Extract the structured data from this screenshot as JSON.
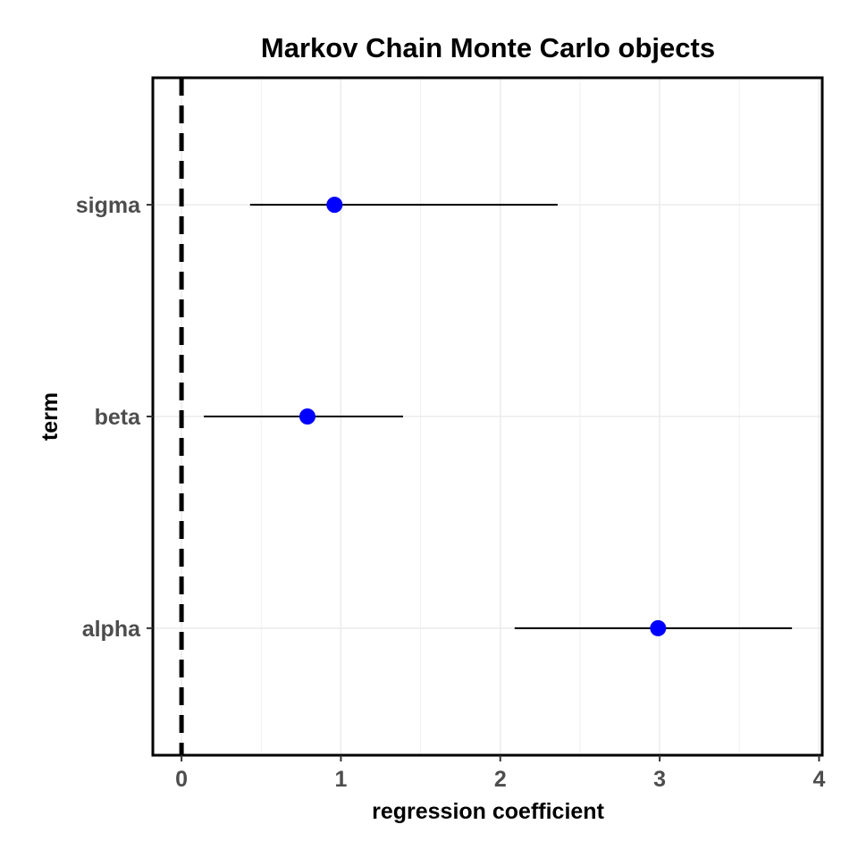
{
  "chart_data": {
    "type": "scatter",
    "title": "Markov Chain Monte Carlo objects",
    "xlabel": "regression coefficient",
    "ylabel": "term",
    "xlim": [
      -0.18,
      4.02
    ],
    "x_ticks": [
      0,
      1,
      2,
      3,
      4
    ],
    "x_tick_labels": [
      "0",
      "1",
      "2",
      "3",
      "4"
    ],
    "categories": [
      "alpha",
      "beta",
      "sigma"
    ],
    "points": [
      {
        "term": "sigma",
        "estimate": 0.96,
        "low": 0.43,
        "high": 2.36
      },
      {
        "term": "beta",
        "estimate": 0.79,
        "low": 0.14,
        "high": 1.39
      },
      {
        "term": "alpha",
        "estimate": 2.99,
        "low": 2.09,
        "high": 3.83
      }
    ],
    "reference_line": {
      "x": 0,
      "style": "dashed"
    },
    "grid": true,
    "point_color": "#0000ff",
    "interval_color": "#000000"
  }
}
